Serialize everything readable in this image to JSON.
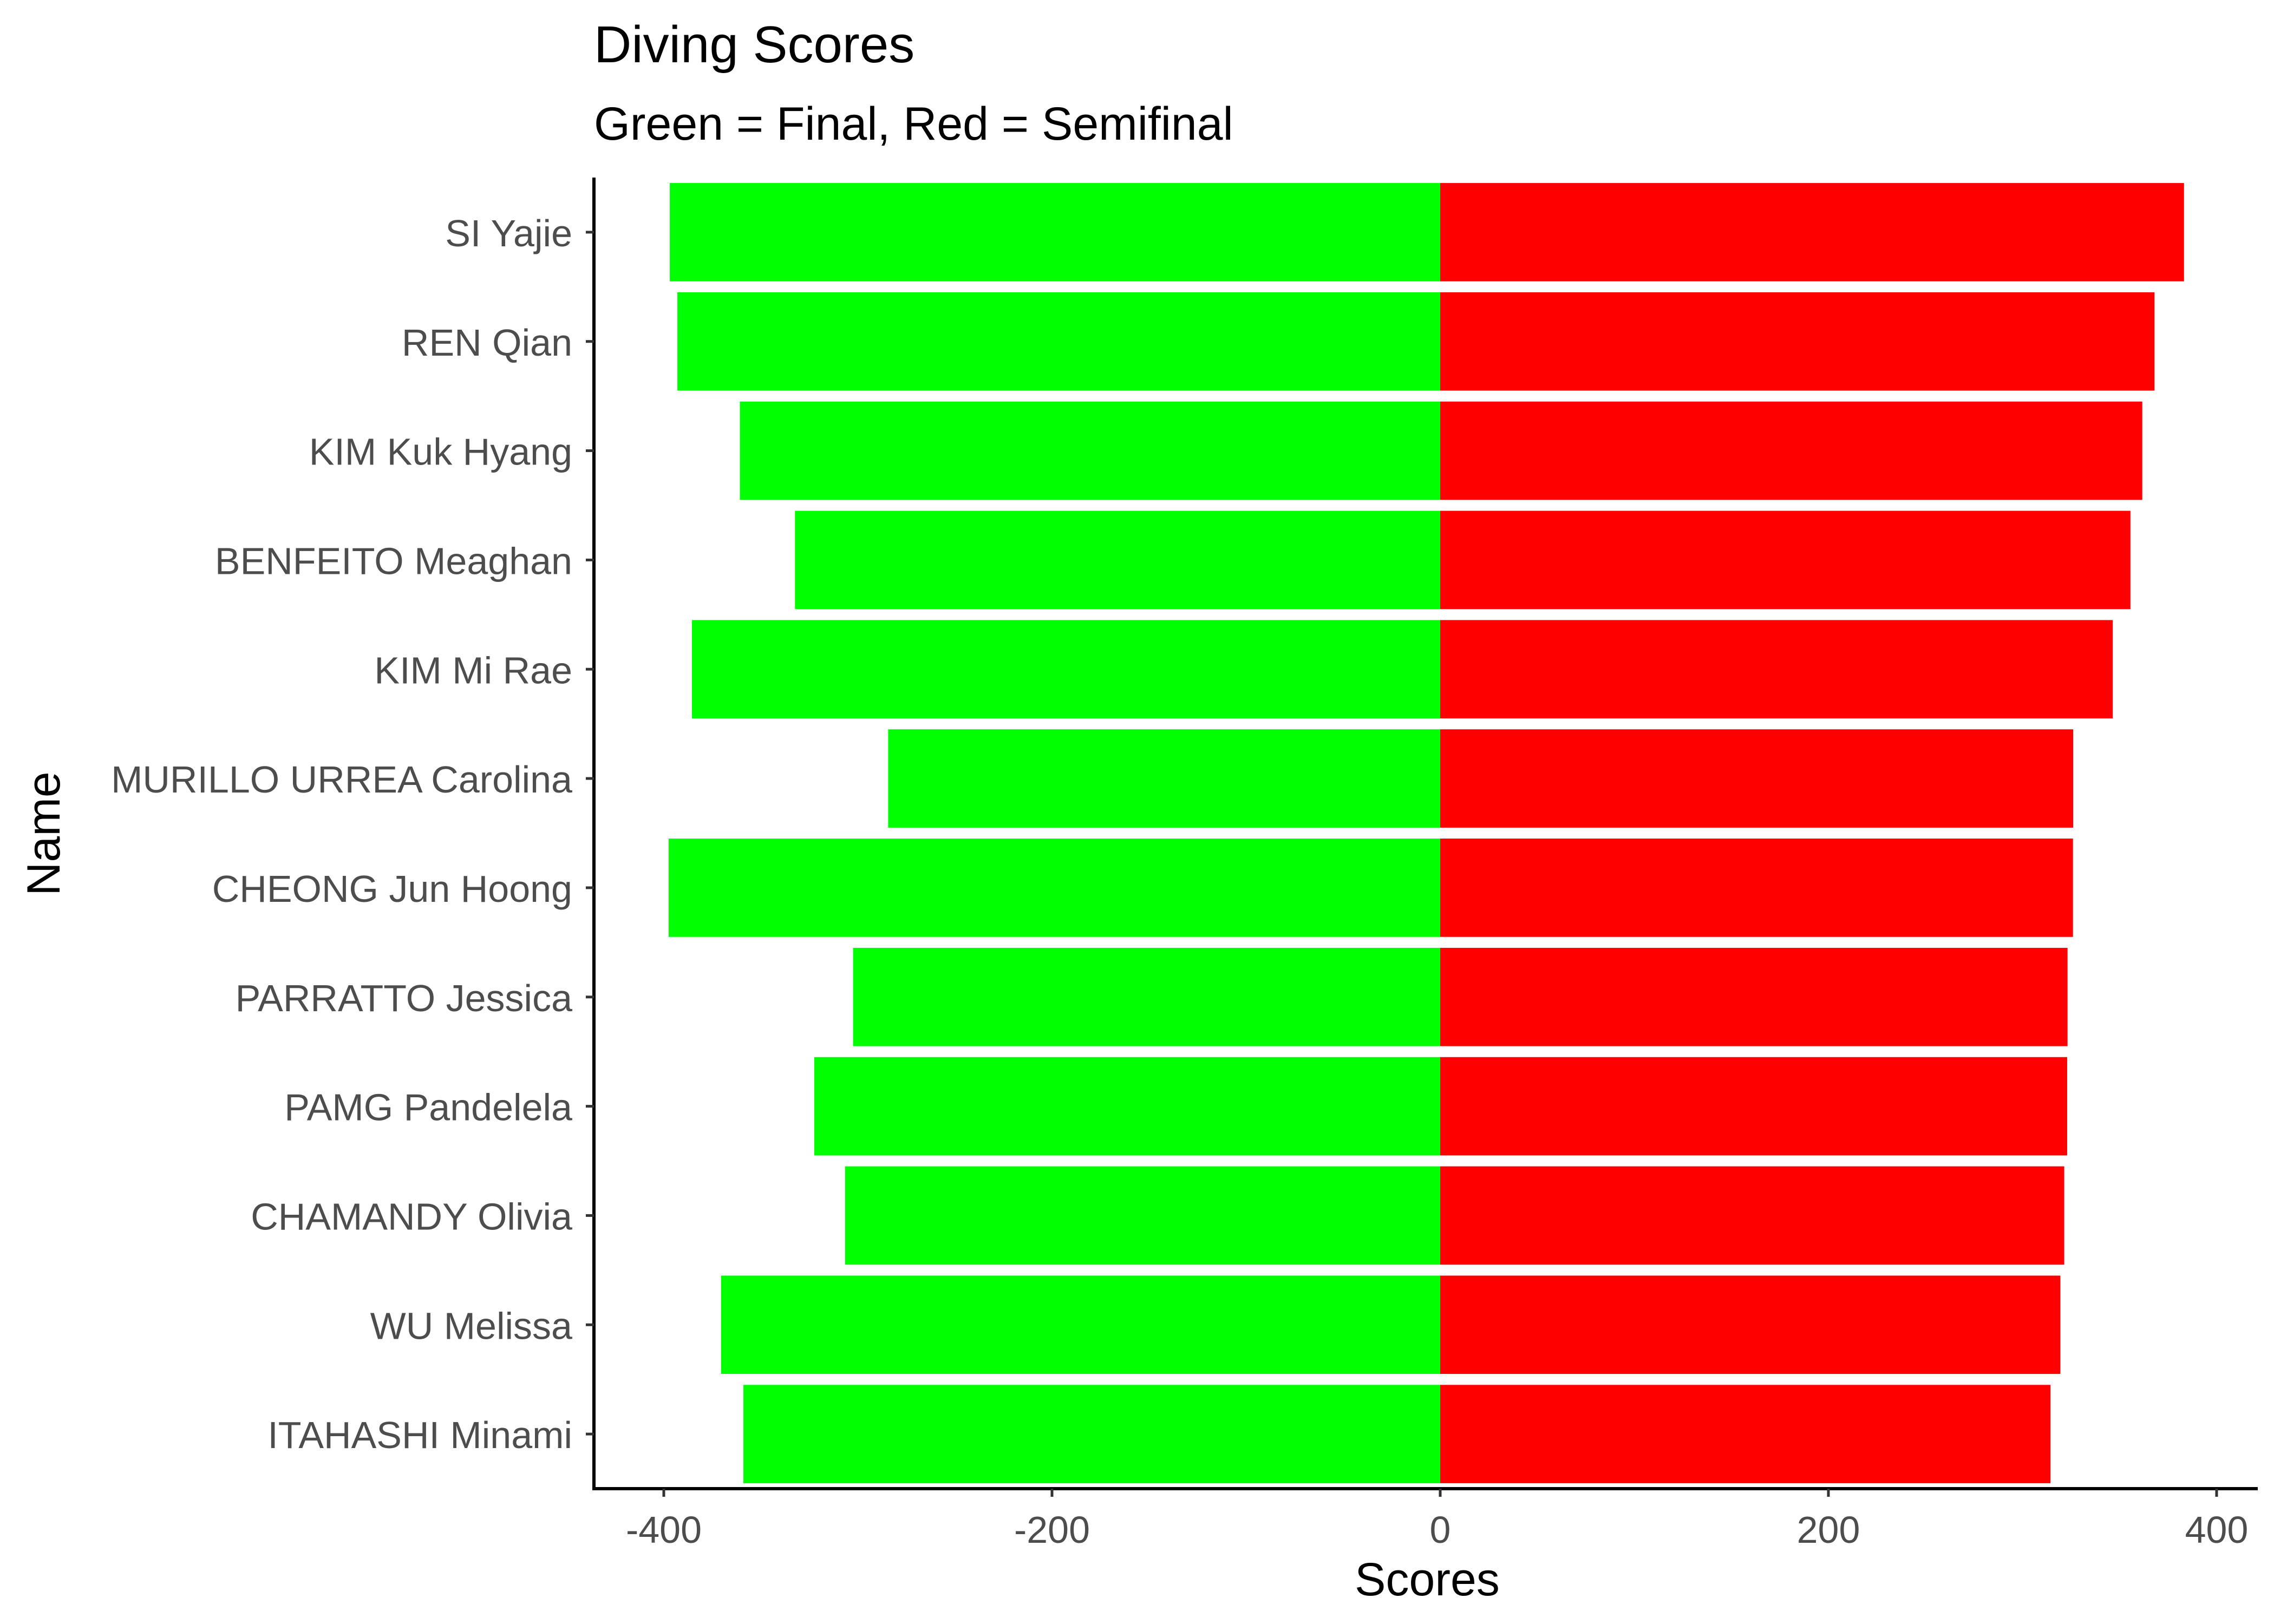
{
  "chart_data": {
    "type": "bar",
    "orientation": "horizontal",
    "title": "Diving Scores",
    "subtitle": "Green = Final, Red = Semifinal",
    "xlabel": "Scores",
    "ylabel": "Name",
    "xlim": [
      -400,
      400
    ],
    "xticks": [
      -400,
      -200,
      0,
      200,
      400
    ],
    "xtick_labels": [
      "-400",
      "-200",
      "0",
      "200",
      "400"
    ],
    "grid": false,
    "legend": "none",
    "categories": [
      "SI Yajie",
      "REN Qian",
      "KIM Kuk Hyang",
      "BENFEITO Meaghan",
      "KIM Mi Rae",
      "MURILLO URREA Carolina",
      "CHEONG Jun Hoong",
      "PARRATTO Jessica",
      "PAMG Pandelela",
      "CHAMANDY Olivia",
      "WU Melissa",
      "ITAHASHI Minami"
    ],
    "series": [
      {
        "color": "#00ff00",
        "values": [
          -396.9,
          -393.0,
          -360.8,
          -332.4,
          -385.5,
          -284.4,
          -397.5,
          -302.5,
          -322.5,
          -306.6,
          -370.5,
          -359.0
        ]
      },
      {
        "color": "#ff0000",
        "values": [
          383.2,
          368.0,
          361.7,
          355.6,
          346.5,
          326.1,
          326.0,
          323.2,
          323.0,
          321.5,
          319.5,
          314.4
        ]
      }
    ]
  }
}
